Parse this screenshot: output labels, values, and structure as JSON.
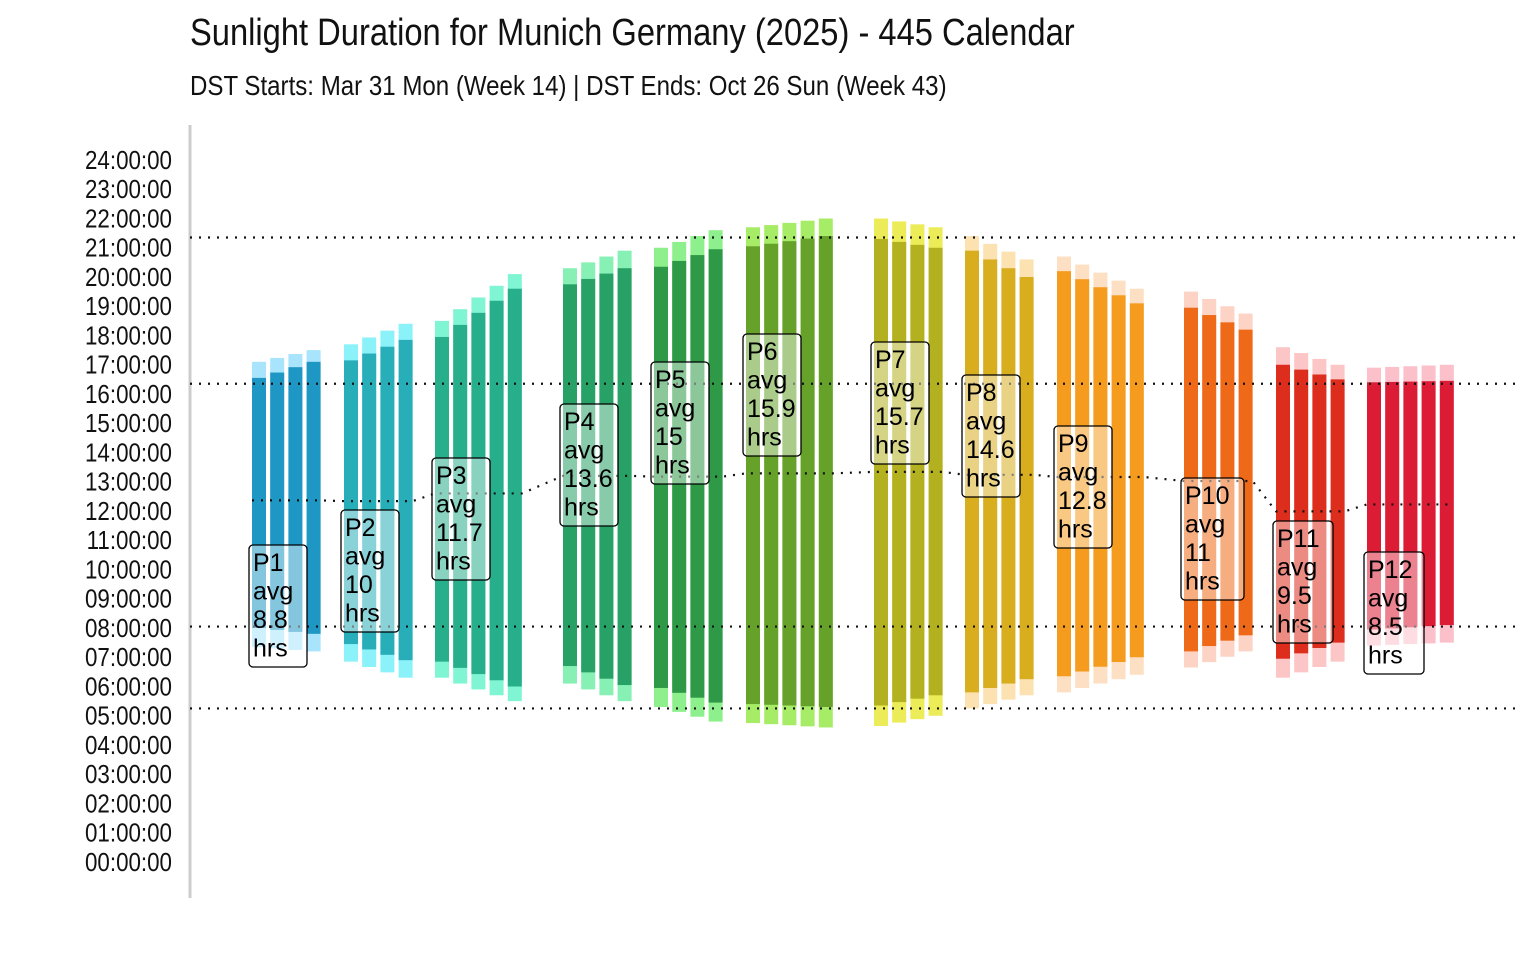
{
  "chart_data": {
    "type": "bar",
    "title": "Sunlight Duration for Munich Germany (2025) - 445 Calendar",
    "subtitle": "DST Starts: Mar 31 Mon (Week 14) | DST Ends: Oct 26 Sun (Week 43)",
    "ylim": [
      0,
      24
    ],
    "y_ticks": [
      "00:00:00",
      "01:00:00",
      "02:00:00",
      "03:00:00",
      "04:00:00",
      "05:00:00",
      "06:00:00",
      "07:00:00",
      "08:00:00",
      "09:00:00",
      "10:00:00",
      "11:00:00",
      "12:00:00",
      "13:00:00",
      "14:00:00",
      "15:00:00",
      "16:00:00",
      "17:00:00",
      "18:00:00",
      "19:00:00",
      "20:00:00",
      "21:00:00",
      "22:00:00",
      "23:00:00",
      "24:00:00"
    ],
    "reference_lines_hours": [
      5.25,
      8.05,
      16.35,
      21.35
    ],
    "grid": false,
    "periods": [
      {
        "name": "P1",
        "weeks": 4,
        "avg_label": [
          "P1",
          "avg",
          "8.8",
          "hrs"
        ],
        "sunrise": [
          8.0,
          7.8
        ],
        "sunset": [
          16.55,
          17.1
        ],
        "twi_start": [
          7.35,
          7.2
        ],
        "twi_end": [
          17.1,
          17.5
        ],
        "dark": "#1f97c4",
        "light": "#a8e4fb"
      },
      {
        "name": "P2",
        "weeks": 4,
        "avg_label": [
          "P2",
          "avg",
          "10",
          "hrs"
        ],
        "sunrise": [
          7.45,
          6.9
        ],
        "sunset": [
          17.15,
          17.85
        ],
        "twi_start": [
          6.85,
          6.3
        ],
        "twi_end": [
          17.7,
          18.4
        ],
        "dark": "#28aeb8",
        "light": "#8cf2fa"
      },
      {
        "name": "P3",
        "weeks": 5,
        "avg_label": [
          "P3",
          "avg",
          "11.7",
          "hrs"
        ],
        "sunrise": [
          6.85,
          6.0
        ],
        "sunset": [
          17.95,
          19.6
        ],
        "twi_start": [
          6.3,
          5.5
        ],
        "twi_end": [
          18.5,
          20.1
        ],
        "dark": "#27ae8a",
        "light": "#80f5d3"
      },
      {
        "name": "P4",
        "weeks": 4,
        "avg_label": [
          "P4",
          "avg",
          "13.6",
          "hrs"
        ],
        "sunrise": [
          6.7,
          6.05
        ],
        "sunset": [
          19.75,
          20.3
        ],
        "twi_start": [
          6.1,
          5.5
        ],
        "twi_end": [
          20.3,
          20.9
        ],
        "dark": "#27a165",
        "light": "#86f0b5"
      },
      {
        "name": "P5",
        "weeks": 4,
        "avg_label": [
          "P5",
          "avg",
          "15",
          "hrs"
        ],
        "sunrise": [
          5.95,
          5.45
        ],
        "sunset": [
          20.35,
          20.95
        ],
        "twi_start": [
          5.3,
          4.8
        ],
        "twi_end": [
          21.0,
          21.6
        ],
        "dark": "#2e9a48",
        "light": "#8ef08c"
      },
      {
        "name": "P6",
        "weeks": 5,
        "avg_label": [
          "P6",
          "avg",
          "15.9",
          "hrs"
        ],
        "sunrise": [
          5.4,
          5.3
        ],
        "sunset": [
          21.05,
          21.4
        ],
        "twi_start": [
          4.75,
          4.6
        ],
        "twi_end": [
          21.7,
          22.0
        ],
        "dark": "#66a12a",
        "light": "#a6ec66"
      },
      {
        "name": "P7",
        "weeks": 4,
        "avg_label": [
          "P7",
          "avg",
          "15.7",
          "hrs"
        ],
        "sunrise": [
          5.35,
          5.7
        ],
        "sunset": [
          21.3,
          21.0
        ],
        "twi_start": [
          4.65,
          5.0
        ],
        "twi_end": [
          22.0,
          21.7
        ],
        "dark": "#b3b120",
        "light": "#ecec58"
      },
      {
        "name": "P8",
        "weeks": 4,
        "avg_label": [
          "P8",
          "avg",
          "14.6",
          "hrs"
        ],
        "sunrise": [
          5.8,
          6.25
        ],
        "sunset": [
          20.9,
          20.0
        ],
        "twi_start": [
          5.25,
          5.7
        ],
        "twi_end": [
          21.4,
          20.6
        ],
        "dark": "#d8ad1e",
        "light": "#fce2b0"
      },
      {
        "name": "P9",
        "weeks": 5,
        "avg_label": [
          "P9",
          "avg",
          "12.8",
          "hrs"
        ],
        "sunrise": [
          6.35,
          7.0
        ],
        "sunset": [
          20.2,
          19.1
        ],
        "twi_start": [
          5.8,
          6.4
        ],
        "twi_end": [
          20.7,
          19.6
        ],
        "dark": "#f59b1e",
        "light": "#fde0c4"
      },
      {
        "name": "P10",
        "weeks": 4,
        "avg_label": [
          "P10",
          "avg",
          "11",
          "hrs"
        ],
        "sunrise": [
          7.2,
          7.75
        ],
        "sunset": [
          18.95,
          18.2
        ],
        "twi_start": [
          6.65,
          7.2
        ],
        "twi_end": [
          19.5,
          18.75
        ],
        "dark": "#ee6a18",
        "light": "#fcd3c4"
      },
      {
        "name": "P11",
        "weeks": 4,
        "avg_label": [
          "P11",
          "avg",
          "9.5",
          "hrs"
        ],
        "sunrise": [
          6.95,
          7.5
        ],
        "sunset": [
          17.0,
          16.5
        ],
        "twi_start": [
          6.3,
          6.85
        ],
        "twi_end": [
          17.6,
          17.0
        ],
        "dark": "#dc2d1d",
        "light": "#fcc6c6"
      },
      {
        "name": "P12",
        "weeks": 5,
        "avg_label": [
          "P12",
          "avg",
          "8.5",
          "hrs"
        ],
        "sunrise": [
          7.95,
          8.1
        ],
        "sunset": [
          16.4,
          16.45
        ],
        "twi_start": [
          7.4,
          7.5
        ],
        "twi_end": [
          16.9,
          17.0
        ],
        "dark": "#dc1c34",
        "light": "#fcc0cb"
      }
    ]
  }
}
